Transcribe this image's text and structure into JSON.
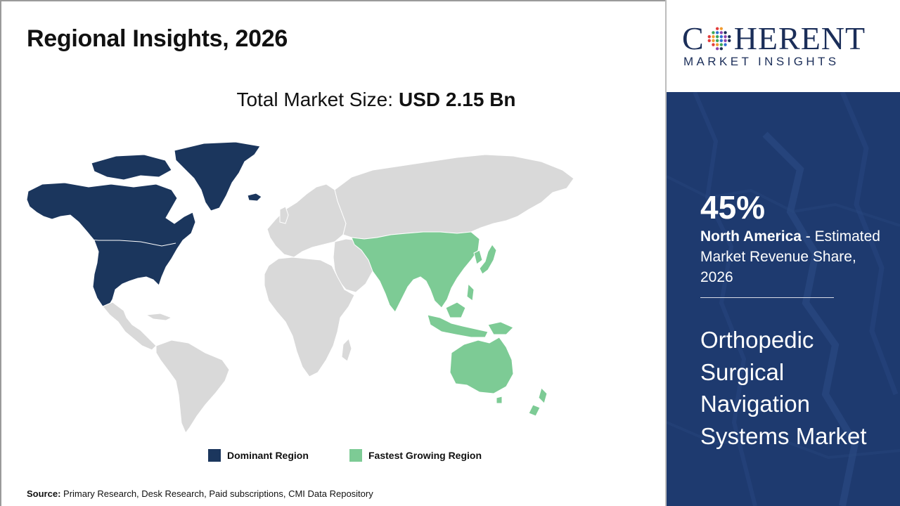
{
  "title": "Regional Insights, 2026",
  "market_size": {
    "label": "Total Market Size:",
    "value": "USD 2.15 Bn"
  },
  "logo": {
    "name": "COHERENT",
    "sub": "MARKET INSIGHTS"
  },
  "highlight": {
    "percent": "45%",
    "region": "North America",
    "description": " - Estimated Market Revenue Share, 2026"
  },
  "market_name": "Orthopedic Surgical Navigation Systems Market",
  "legend": {
    "dominant": {
      "label": "Dominant Region",
      "color": "#1b365d"
    },
    "fastest": {
      "label": "Fastest Growing Region",
      "color": "#7dcb95"
    }
  },
  "map_colors": {
    "other": "#d9d9d9",
    "border": "#ffffff"
  },
  "regions": {
    "dominant": [
      "North America"
    ],
    "fastest_growing": [
      "Asia Pacific"
    ]
  },
  "source": {
    "label": "Source:",
    "text": " Primary Research, Desk Research, Paid subscriptions, CMI Data Repository"
  }
}
